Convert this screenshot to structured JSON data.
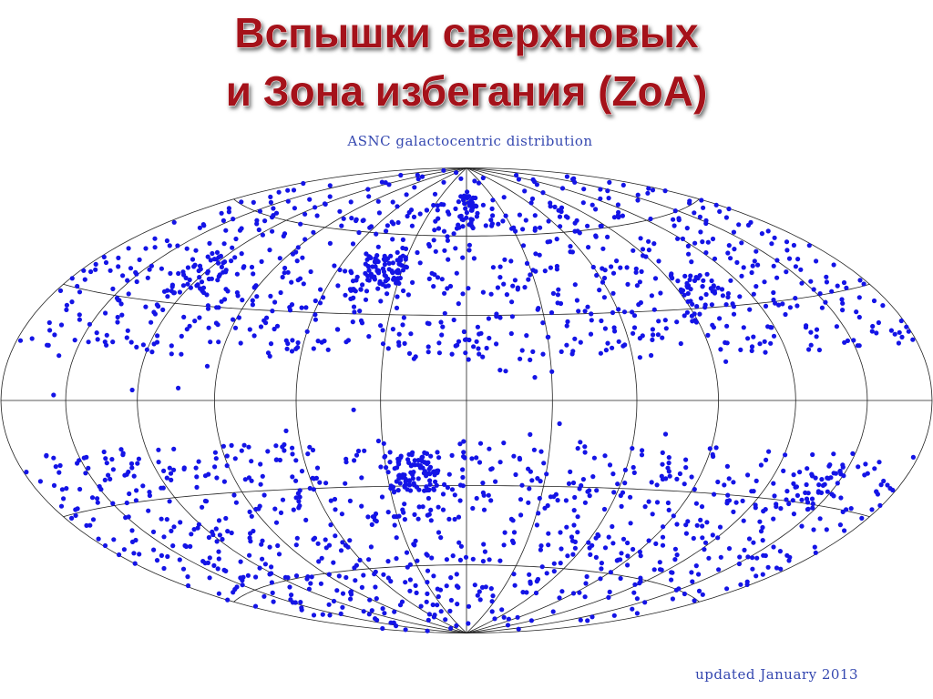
{
  "title_lines": [
    "Вспышки сверхновых",
    "и Зона избегания (ZoA)"
  ],
  "map": {
    "caption": "ASNC galactocentric distribution",
    "footer": "updated January 2013"
  }
}
